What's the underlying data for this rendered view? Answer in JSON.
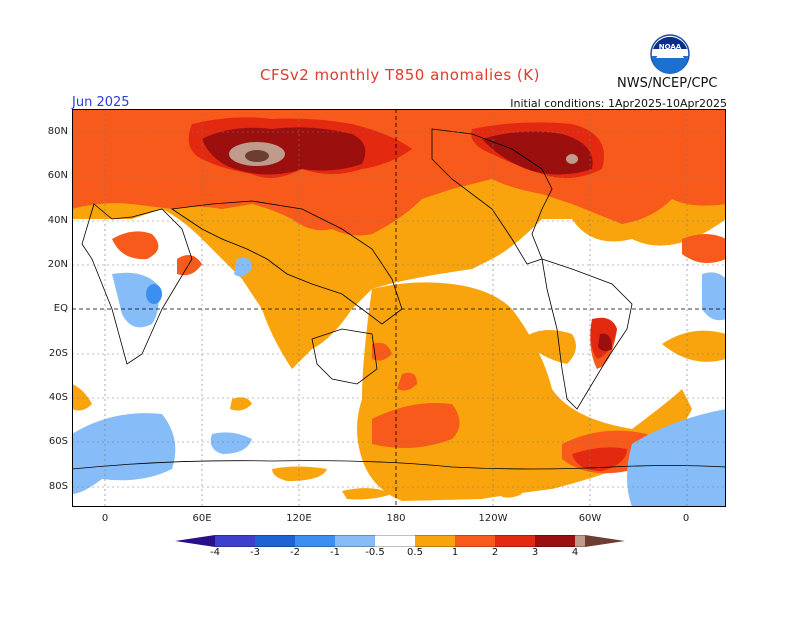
{
  "header": {
    "title": "CFSv2 monthly T850 anomalies (K)",
    "month": "Jun 2025",
    "org": "NWS/NCEP/CPC",
    "initial_conditions": "Initial conditions: 1Apr2025-10Apr2025",
    "logo_text": "NOAA"
  },
  "map": {
    "lat_labels": [
      "80N",
      "60N",
      "40N",
      "20N",
      "EQ",
      "20S",
      "40S",
      "60S",
      "80S"
    ],
    "lon_labels": [
      "0",
      "60E",
      "120E",
      "180",
      "120W",
      "60W",
      "0"
    ],
    "projection": "cylindrical equidistant, centered on 180"
  },
  "legend": {
    "labels": [
      "-4",
      "-3",
      "-2",
      "-1",
      "-0.5",
      "0.5",
      "1",
      "2",
      "3",
      "4"
    ],
    "colors": {
      "lt_-4": "#2a0f8a",
      "-4_-3": "#3f3fcf",
      "-3_-2": "#1d63d6",
      "-2_-1": "#3b8ff0",
      "-1_-0.5": "#86bcf7",
      "-0.5_0.5": "#ffffff",
      "0.5_1": "#f9a40d",
      "1_2": "#f85a1b",
      "2_3": "#e3290f",
      "3_4": "#9b0f0f",
      "gt_4": "#c09b8c",
      "gt_5": "#6b3d33"
    }
  },
  "colors": {
    "title": "#e03a2a",
    "month": "#2a3fd8",
    "accent_orange": "#f9a40d",
    "accent_red": "#e3290f",
    "accent_blue": "#86bcf7"
  }
}
